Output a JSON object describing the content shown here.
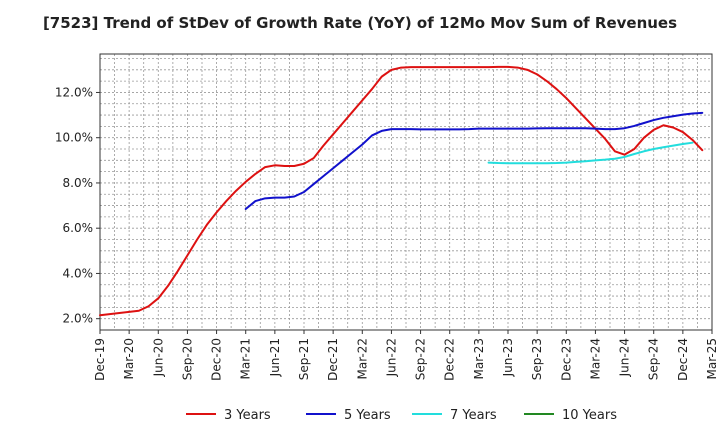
{
  "chart_data": {
    "type": "line",
    "title": "[7523]  Trend of StDev of Growth Rate (YoY) of 12Mo Mov Sum of Revenues",
    "xlabel": "",
    "ylabel": "",
    "x_ticks": [
      "Dec-19",
      "Mar-20",
      "Jun-20",
      "Sep-20",
      "Dec-20",
      "Mar-21",
      "Jun-21",
      "Sep-21",
      "Dec-21",
      "Mar-22",
      "Jun-22",
      "Sep-22",
      "Dec-22",
      "Mar-23",
      "Jun-23",
      "Sep-23",
      "Dec-23",
      "Mar-24",
      "Jun-24",
      "Sep-24",
      "Dec-24",
      "Mar-25"
    ],
    "y_ticks": [
      2.0,
      4.0,
      6.0,
      8.0,
      10.0,
      12.0
    ],
    "y_tick_labels": [
      "2.0%",
      "4.0%",
      "6.0%",
      "8.0%",
      "10.0%",
      "12.0%"
    ],
    "ylim": [
      1.5,
      13.7
    ],
    "x_range_months": [
      0,
      63
    ],
    "grid": true,
    "legend_position": "bottom",
    "series": [
      {
        "name": "3 Years",
        "color": "#dd1111",
        "start_month": 0,
        "values": [
          2.15,
          2.2,
          2.25,
          2.3,
          2.35,
          2.55,
          2.9,
          3.45,
          4.1,
          4.8,
          5.5,
          6.15,
          6.7,
          7.2,
          7.65,
          8.05,
          8.4,
          8.7,
          8.78,
          8.75,
          8.75,
          8.85,
          9.1,
          9.65,
          10.15,
          10.65,
          11.15,
          11.65,
          12.15,
          12.7,
          13.0,
          13.1,
          13.12,
          13.12,
          13.12,
          13.12,
          13.12,
          13.12,
          13.12,
          13.12,
          13.12,
          13.13,
          13.13,
          13.1,
          13.0,
          12.8,
          12.5,
          12.15,
          11.75,
          11.3,
          10.85,
          10.4,
          9.95,
          9.4,
          9.25,
          9.5,
          10.0,
          10.35,
          10.55,
          10.45,
          10.25,
          9.9,
          9.45
        ]
      },
      {
        "name": "5 Years",
        "color": "#1111cc",
        "start_month": 15,
        "values": [
          6.85,
          7.2,
          7.32,
          7.35,
          7.35,
          7.4,
          7.6,
          7.95,
          8.3,
          8.65,
          9.0,
          9.35,
          9.7,
          10.1,
          10.3,
          10.38,
          10.38,
          10.38,
          10.37,
          10.37,
          10.37,
          10.37,
          10.37,
          10.38,
          10.4,
          10.4,
          10.4,
          10.4,
          10.4,
          10.4,
          10.41,
          10.42,
          10.42,
          10.42,
          10.42,
          10.42,
          10.4,
          10.38,
          10.38,
          10.42,
          10.52,
          10.65,
          10.78,
          10.88,
          10.95,
          11.02,
          11.07,
          11.1
        ]
      },
      {
        "name": "7 Years",
        "color": "#22dddd",
        "start_month": 40,
        "values": [
          8.9,
          8.88,
          8.87,
          8.87,
          8.87,
          8.87,
          8.87,
          8.88,
          8.9,
          8.93,
          8.96,
          9.0,
          9.03,
          9.07,
          9.15,
          9.28,
          9.4,
          9.5,
          9.58,
          9.65,
          9.72,
          9.78
        ]
      },
      {
        "name": "10 Years",
        "color": "#228822",
        "start_month": 0,
        "values": []
      }
    ]
  }
}
